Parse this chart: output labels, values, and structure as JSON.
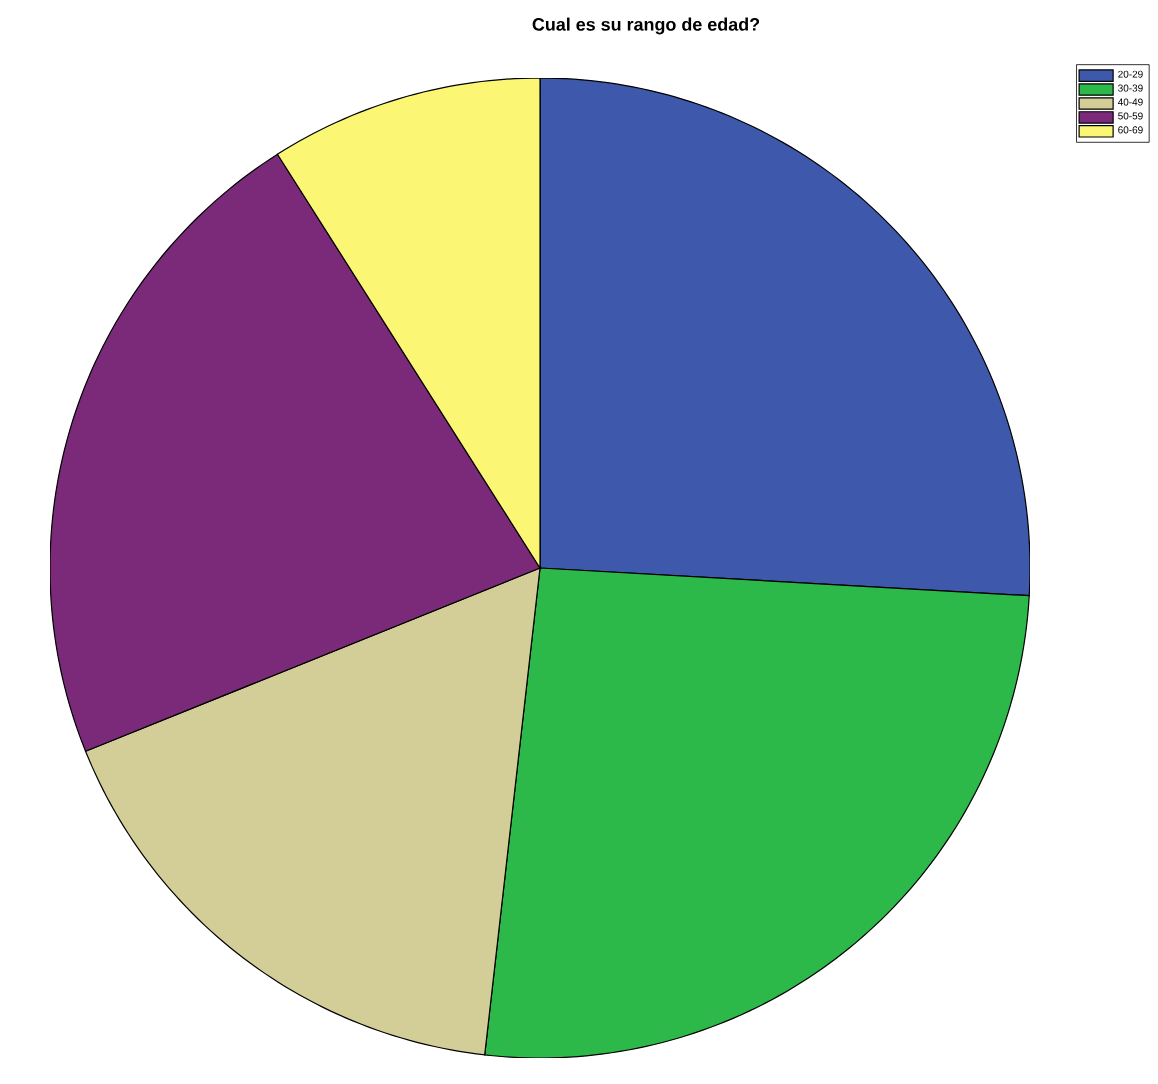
{
  "chart_data": {
    "type": "pie",
    "title": "Cual es su rango de edad?",
    "categories": [
      "20-29",
      "30-39",
      "40-49",
      "50-59",
      "60-69"
    ],
    "values": [
      25.9,
      25.9,
      17.1,
      22.1,
      9.0
    ],
    "colors": [
      "#3e58ac",
      "#2db84a",
      "#d3ce97",
      "#7b2a7a",
      "#fbf775"
    ],
    "legend": "top right"
  }
}
